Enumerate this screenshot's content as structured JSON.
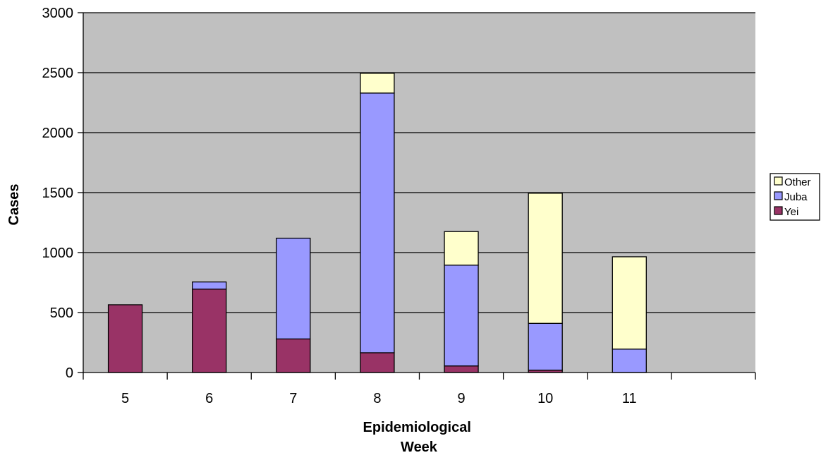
{
  "chart_data": {
    "type": "bar",
    "stacked": true,
    "categories": [
      "5",
      "6",
      "7",
      "8",
      "9",
      "10",
      "11"
    ],
    "series": [
      {
        "name": "Yei",
        "color": "#993366",
        "values": [
          565,
          695,
          280,
          165,
          55,
          20,
          0
        ]
      },
      {
        "name": "Juba",
        "color": "#9999FF",
        "values": [
          0,
          60,
          840,
          2165,
          840,
          390,
          195
        ]
      },
      {
        "name": "Other",
        "color": "#FFFFCC",
        "values": [
          0,
          0,
          0,
          165,
          280,
          1085,
          770
        ]
      }
    ],
    "xlabel_lines": [
      "Epidemiological",
      "Week"
    ],
    "ylabel": "Cases",
    "ylim": [
      0,
      3000
    ],
    "yticks": [
      0,
      500,
      1000,
      1500,
      2000,
      2500,
      3000
    ],
    "x_slots": 8,
    "grid": true,
    "plot_background": "#C0C0C0",
    "legend_position": "right",
    "legend_order": [
      "Other",
      "Juba",
      "Yei"
    ]
  }
}
